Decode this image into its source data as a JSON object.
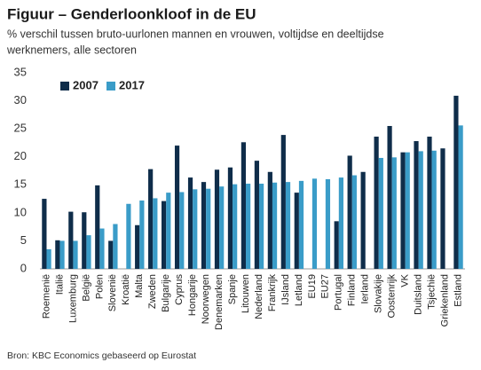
{
  "chart_data": {
    "type": "bar",
    "title": "Figuur – Genderloonkloof in de EU",
    "subtitle": [
      "% verschil tussen bruto-uurlonen mannen en vrouwen, voltijdse en deeltijdse",
      "werknemers, alle sectoren"
    ],
    "source": "Bron: KBC Economics gebaseerd op Eurostat",
    "categories": [
      "Roemenië",
      "Italië",
      "Luxemburg",
      "België",
      "Polen",
      "Slovenië",
      "Kroatië",
      "Malta",
      "Zweden",
      "Bulgarije",
      "Cyprus",
      "Hongarije",
      "Noorwegen",
      "Denemarken",
      "Spanje",
      "Litouwen",
      "Nederland",
      "Frankrijk",
      "IJsland",
      "Letland",
      "EU19",
      "EU27",
      "Portugal",
      "Finland",
      "Ierland",
      "Slovakije",
      "Oostenrijk",
      "VK",
      "Duitsland",
      "Tsjechië",
      "Griekenland",
      "Estland"
    ],
    "series": [
      {
        "name": "2007",
        "color": "#0f2d4a",
        "values": [
          12.5,
          5.1,
          10.2,
          10.1,
          14.9,
          5.0,
          null,
          7.8,
          17.8,
          12.1,
          22.0,
          16.3,
          15.5,
          17.7,
          18.1,
          22.6,
          19.3,
          17.3,
          23.9,
          13.6,
          null,
          null,
          8.5,
          20.2,
          17.3,
          23.6,
          25.5,
          20.8,
          22.8,
          23.6,
          21.5,
          30.9
        ]
      },
      {
        "name": "2017",
        "color": "#3a9cc8",
        "values": [
          3.5,
          5.0,
          5.0,
          6.0,
          7.2,
          8.0,
          11.6,
          12.2,
          12.6,
          13.6,
          13.7,
          14.2,
          14.3,
          14.7,
          15.1,
          15.2,
          15.2,
          15.4,
          15.5,
          15.7,
          16.1,
          16.0,
          16.3,
          16.7,
          null,
          19.8,
          19.9,
          20.8,
          21.0,
          21.1,
          null,
          25.6
        ]
      }
    ],
    "ylim": [
      0,
      35
    ],
    "yticks": [
      0,
      5,
      10,
      15,
      20,
      25,
      30,
      35
    ],
    "grid": false,
    "legend": "top-left"
  }
}
